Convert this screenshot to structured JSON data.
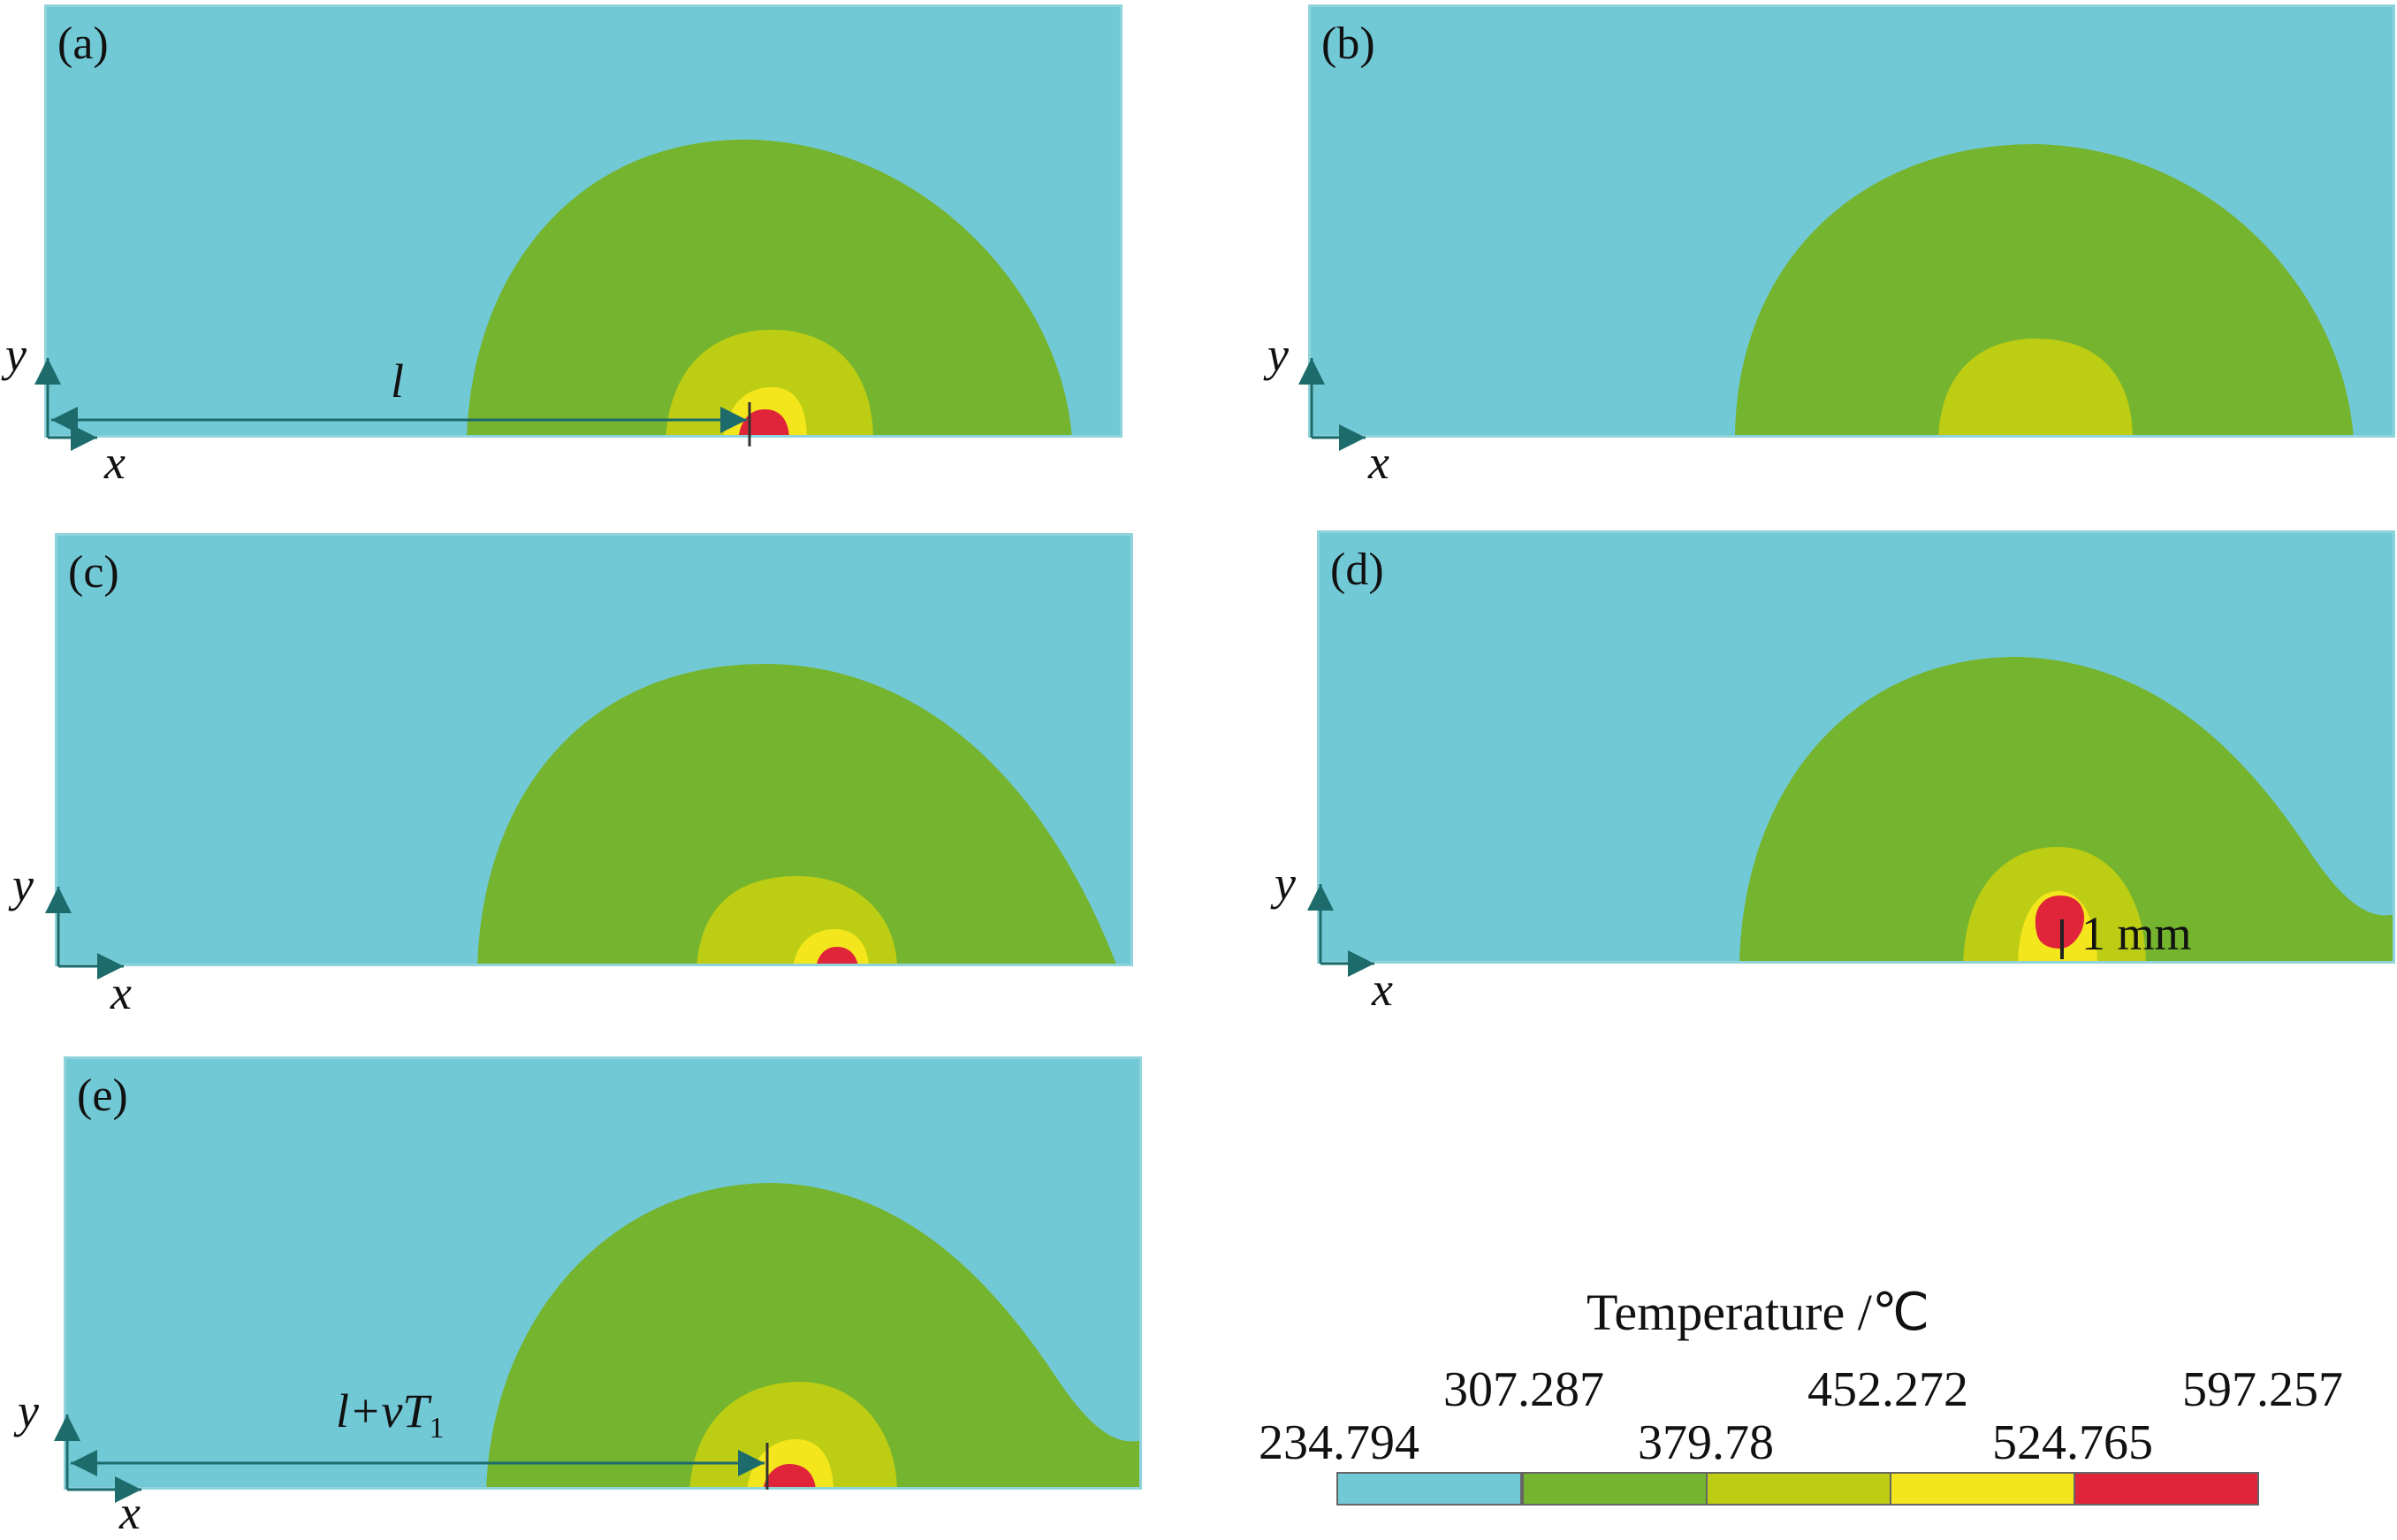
{
  "panels": [
    {
      "id": "a",
      "label": "(a)"
    },
    {
      "id": "b",
      "label": "(b)"
    },
    {
      "id": "c",
      "label": "(c)"
    },
    {
      "id": "d",
      "label": "(d)"
    },
    {
      "id": "e",
      "label": "(e)"
    }
  ],
  "axes": {
    "x": "x",
    "y": "y"
  },
  "annotations": {
    "a_distance": "l",
    "d_scale": "1 mm",
    "e_distance_l": "l",
    "e_distance_rest": "+vT",
    "e_distance_sub": "1"
  },
  "legend": {
    "title": "Temperature /℃",
    "ticks": [
      "234.794",
      "307.287",
      "379.78",
      "452.272",
      "524.765",
      "597.257"
    ],
    "colors": [
      "#72c9d6",
      "#74b42e",
      "#bccd14",
      "#f4e61c",
      "#e0253a"
    ]
  }
}
